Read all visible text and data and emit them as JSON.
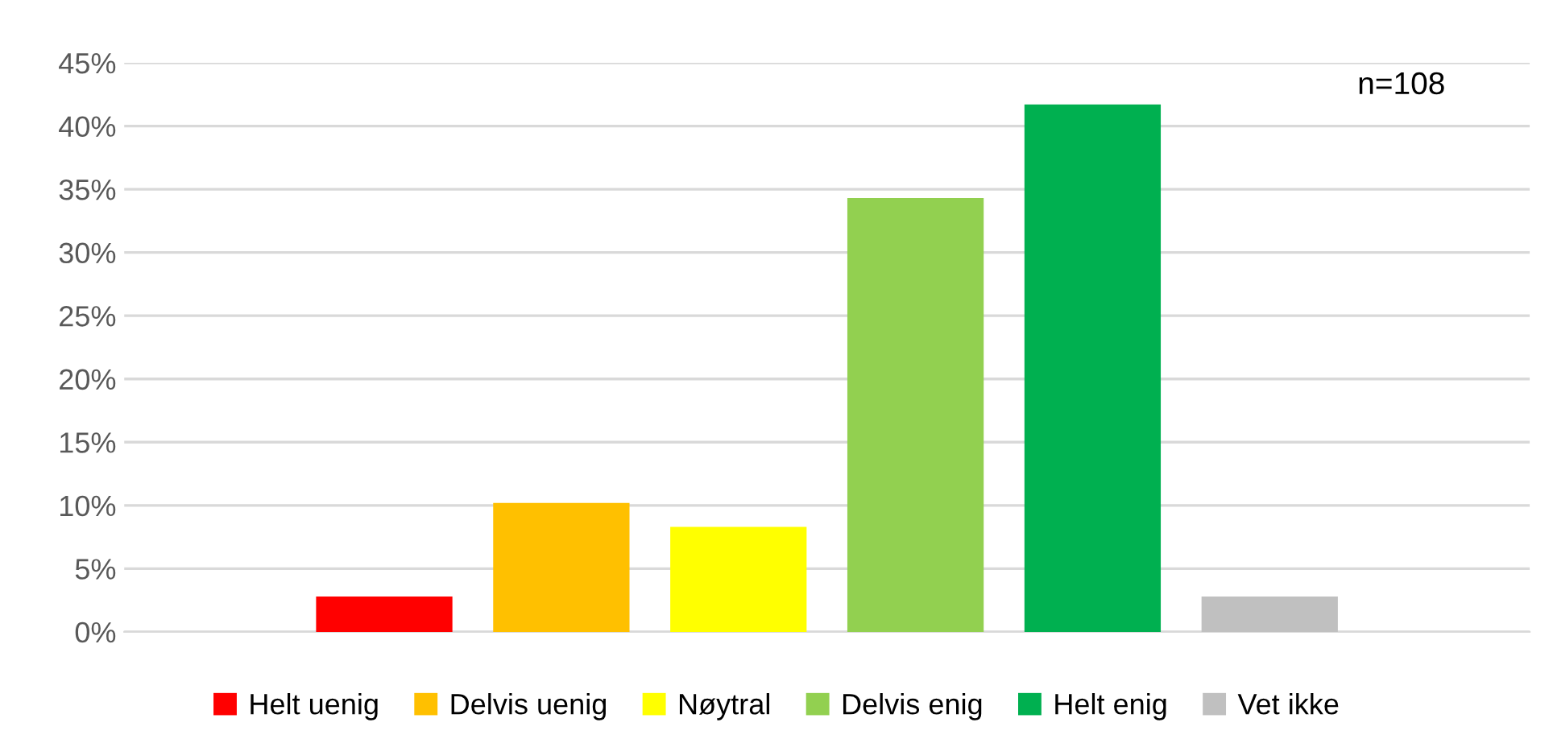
{
  "chart_data": {
    "type": "bar",
    "categories": [
      null
    ],
    "series": [
      {
        "name": "Helt uenig",
        "color": "#ff0000",
        "values": [
          2.8
        ]
      },
      {
        "name": "Delvis uenig",
        "color": "#ffc000",
        "values": [
          10.2
        ]
      },
      {
        "name": "Nøytral",
        "color": "#ffff00",
        "values": [
          8.3
        ]
      },
      {
        "name": "Delvis enig",
        "color": "#92d050",
        "values": [
          34.3
        ]
      },
      {
        "name": "Helt enig",
        "color": "#00b050",
        "values": [
          41.7
        ]
      },
      {
        "name": "Vet ikke",
        "color": "#c0c0c0",
        "values": [
          2.8
        ]
      }
    ],
    "ylim": [
      0,
      45
    ],
    "yticks": [
      {
        "value": 0,
        "label": "0%"
      },
      {
        "value": 5,
        "label": "5%"
      },
      {
        "value": 10,
        "label": "10%"
      },
      {
        "value": 15,
        "label": "15%"
      },
      {
        "value": 20,
        "label": "20%"
      },
      {
        "value": 25,
        "label": "25%"
      },
      {
        "value": 30,
        "label": "30%"
      },
      {
        "value": 35,
        "label": "35%"
      },
      {
        "value": 40,
        "label": "40%"
      },
      {
        "value": 45,
        "label": "45%"
      }
    ],
    "grid": "y",
    "legend": "bottom",
    "annotations": [
      "n=108"
    ]
  }
}
